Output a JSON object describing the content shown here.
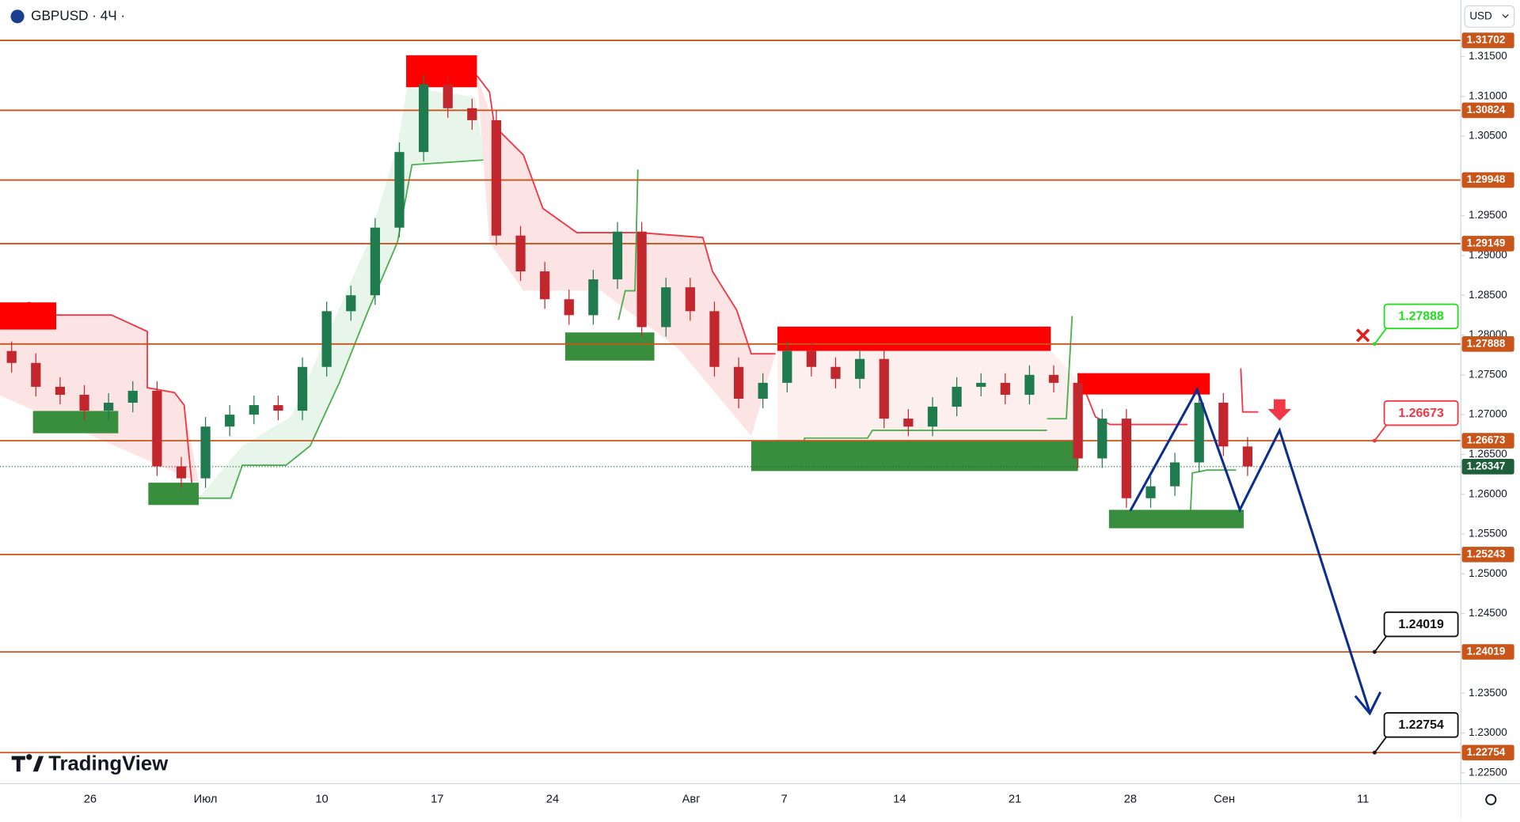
{
  "header": {
    "symbol": "GBPUSD · 4Ч ·",
    "currency": "USD",
    "logo": "TradingView"
  },
  "chart_data": {
    "type": "candlestick",
    "open": [
      1.278,
      1.2765,
      1.2735,
      1.2725,
      1.2705,
      1.2715,
      1.273,
      1.2635,
      1.262,
      1.2685,
      1.27,
      1.2712,
      1.2705,
      1.276,
      1.283,
      1.285,
      1.2935,
      1.303,
      1.3115,
      1.3085,
      1.307,
      1.2925,
      1.288,
      1.2845,
      1.2825,
      1.287,
      1.293,
      1.281,
      1.286,
      1.283,
      1.276,
      1.272,
      1.274,
      1.278,
      1.276,
      1.2745,
      1.277,
      1.2695,
      1.2685,
      1.271,
      1.2735,
      1.274,
      1.2725,
      1.275,
      1.274,
      1.2645,
      1.2695,
      1.2595,
      1.261,
      1.264,
      1.2715,
      1.266
    ],
    "high": [
      1.2792,
      1.2777,
      1.2747,
      1.2737,
      1.2727,
      1.2742,
      1.2742,
      1.2647,
      1.2697,
      1.2712,
      1.2724,
      1.2724,
      1.2772,
      1.2842,
      1.2862,
      1.2947,
      1.3042,
      1.3127,
      1.3127,
      1.3097,
      1.3082,
      1.2937,
      1.2892,
      1.2857,
      1.2882,
      1.2942,
      1.2942,
      1.2872,
      1.2872,
      1.2842,
      1.2772,
      1.2752,
      1.2792,
      1.2792,
      1.2772,
      1.2782,
      1.2782,
      1.2707,
      1.2722,
      1.2747,
      1.2752,
      1.2752,
      1.2762,
      1.2762,
      1.2752,
      1.2707,
      1.2707,
      1.2622,
      1.2652,
      1.2727,
      1.2727,
      1.2672
    ],
    "low": [
      1.2753,
      1.2723,
      1.2713,
      1.2693,
      1.2693,
      1.2703,
      1.2623,
      1.2608,
      1.2608,
      1.2673,
      1.2688,
      1.2693,
      1.2693,
      1.2748,
      1.2818,
      1.2838,
      1.2923,
      1.3018,
      1.3073,
      1.3058,
      1.2913,
      1.2868,
      1.2833,
      1.2813,
      1.2813,
      1.2858,
      1.2798,
      1.2798,
      1.2818,
      1.2748,
      1.2708,
      1.2708,
      1.2728,
      1.2748,
      1.2733,
      1.2733,
      1.2683,
      1.2673,
      1.2673,
      1.2698,
      1.2723,
      1.2713,
      1.2713,
      1.2728,
      1.2633,
      1.2633,
      1.2583,
      1.2583,
      1.2598,
      1.2628,
      1.2648,
      1.2623
    ],
    "close": [
      1.2765,
      1.2735,
      1.2725,
      1.2705,
      1.2715,
      1.273,
      1.2635,
      1.262,
      1.2685,
      1.27,
      1.2712,
      1.2705,
      1.276,
      1.283,
      1.285,
      1.2935,
      1.303,
      1.3115,
      1.3085,
      1.307,
      1.2925,
      1.288,
      1.2845,
      1.2825,
      1.287,
      1.293,
      1.281,
      1.286,
      1.283,
      1.276,
      1.272,
      1.274,
      1.278,
      1.276,
      1.2745,
      1.277,
      1.2695,
      1.2685,
      1.271,
      1.2735,
      1.274,
      1.2725,
      1.275,
      1.274,
      1.2645,
      1.2695,
      1.2595,
      1.261,
      1.264,
      1.2715,
      1.266,
      1.2635
    ],
    "up_color": "#1f7a4d",
    "down_color": "#c2272d",
    "ylim": [
      1.2237,
      1.3221
    ],
    "yticks": [
      {
        "value": 1.315,
        "label": "1.31500"
      },
      {
        "value": 1.31,
        "label": "1.31000"
      },
      {
        "value": 1.305,
        "label": "1.30500"
      },
      {
        "value": 1.295,
        "label": "1.29500"
      },
      {
        "value": 1.29,
        "label": "1.29000"
      },
      {
        "value": 1.285,
        "label": "1.28500"
      },
      {
        "value": 1.28,
        "label": "1.28000"
      },
      {
        "value": 1.275,
        "label": "1.27500"
      },
      {
        "value": 1.27,
        "label": "1.27000"
      },
      {
        "value": 1.265,
        "label": "1.26500"
      },
      {
        "value": 1.26,
        "label": "1.26000"
      },
      {
        "value": 1.255,
        "label": "1.25500"
      },
      {
        "value": 1.25,
        "label": "1.25000"
      },
      {
        "value": 1.245,
        "label": "1.24500"
      },
      {
        "value": 1.235,
        "label": "1.23500"
      },
      {
        "value": 1.23,
        "label": "1.23000"
      },
      {
        "value": 1.225,
        "label": "1.22500"
      }
    ],
    "categories": [
      "26",
      "Июл",
      "10",
      "17",
      "24",
      "Авг",
      "7",
      "14",
      "21",
      "28",
      "Сен",
      "11"
    ],
    "levels": [
      1.31702,
      1.30824,
      1.29948,
      1.29149,
      1.27888,
      1.26673,
      1.25243,
      1.24019,
      1.22754
    ],
    "level_color": "#c8551a",
    "current_price": 1.26347,
    "current_color": "#1e5e3a",
    "callouts": [
      {
        "value": 1.27888,
        "color": "#22dd22"
      },
      {
        "value": 1.26673,
        "color": "#f23645"
      },
      {
        "value": 1.24019,
        "color": "#111111"
      },
      {
        "value": 1.22754,
        "color": "#111111"
      }
    ]
  }
}
